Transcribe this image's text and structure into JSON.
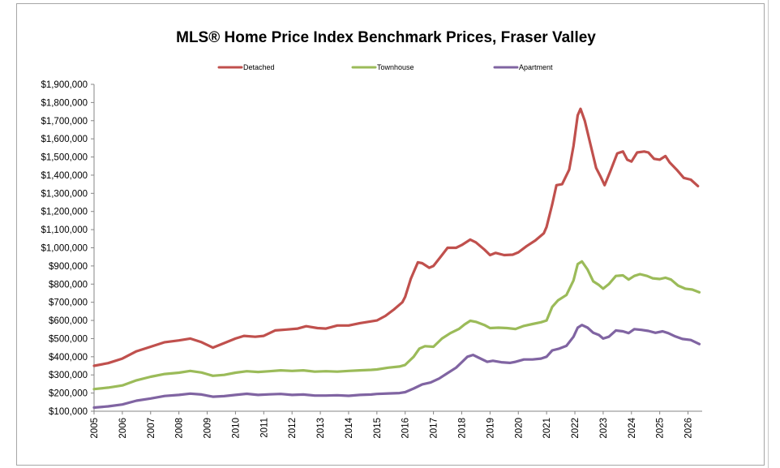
{
  "chart_data": {
    "type": "line",
    "title": "MLS® Home Price Index Benchmark Prices, Fraser Valley",
    "xlabel": "",
    "ylabel": "",
    "ylim": [
      100000,
      1900000
    ],
    "xlim": [
      2005,
      2026.5
    ],
    "y_ticks": [
      100000,
      200000,
      300000,
      400000,
      500000,
      600000,
      700000,
      800000,
      900000,
      1000000,
      1100000,
      1200000,
      1300000,
      1400000,
      1500000,
      1600000,
      1700000,
      1800000,
      1900000
    ],
    "y_tick_labels": [
      "$100,000",
      "$200,000",
      "$300,000",
      "$400,000",
      "$500,000",
      "$600,000",
      "$700,000",
      "$800,000",
      "$900,000",
      "$1,000,000",
      "$1,100,000",
      "$1,200,000",
      "$1,300,000",
      "$1,400,000",
      "$1,500,000",
      "$1,600,000",
      "$1,700,000",
      "$1,800,000",
      "$1,900,000"
    ],
    "x_ticks": [
      2005,
      2006,
      2007,
      2008,
      2009,
      2010,
      2011,
      2012,
      2013,
      2014,
      2015,
      2016,
      2017,
      2018,
      2019,
      2020,
      2021,
      2022,
      2023,
      2024,
      2025,
      2026
    ],
    "x_tick_labels": [
      "2005",
      "2006",
      "2007",
      "2008",
      "2009",
      "2010",
      "2011",
      "2012",
      "2013",
      "2014",
      "2015",
      "2016",
      "2017",
      "2018",
      "2019",
      "2020",
      "2021",
      "2022",
      "2023",
      "2024",
      "2025",
      "2026"
    ],
    "grid": false,
    "legend_position": "top",
    "series": [
      {
        "name": "Detached",
        "color": "#c0504d",
        "points": [
          [
            2005.0,
            350000
          ],
          [
            2005.5,
            365000
          ],
          [
            2006.0,
            390000
          ],
          [
            2006.5,
            430000
          ],
          [
            2007.0,
            455000
          ],
          [
            2007.5,
            480000
          ],
          [
            2008.0,
            490000
          ],
          [
            2008.4,
            500000
          ],
          [
            2008.8,
            480000
          ],
          [
            2009.2,
            450000
          ],
          [
            2009.6,
            475000
          ],
          [
            2010.0,
            500000
          ],
          [
            2010.3,
            515000
          ],
          [
            2010.7,
            510000
          ],
          [
            2011.0,
            515000
          ],
          [
            2011.4,
            545000
          ],
          [
            2011.8,
            550000
          ],
          [
            2012.2,
            555000
          ],
          [
            2012.5,
            568000
          ],
          [
            2012.9,
            558000
          ],
          [
            2013.2,
            555000
          ],
          [
            2013.6,
            572000
          ],
          [
            2014.0,
            572000
          ],
          [
            2014.4,
            585000
          ],
          [
            2014.8,
            595000
          ],
          [
            2015.0,
            600000
          ],
          [
            2015.3,
            625000
          ],
          [
            2015.6,
            660000
          ],
          [
            2015.9,
            700000
          ],
          [
            2016.0,
            730000
          ],
          [
            2016.2,
            830000
          ],
          [
            2016.45,
            920000
          ],
          [
            2016.6,
            915000
          ],
          [
            2016.85,
            890000
          ],
          [
            2017.0,
            900000
          ],
          [
            2017.3,
            960000
          ],
          [
            2017.5,
            1000000
          ],
          [
            2017.8,
            1000000
          ],
          [
            2018.0,
            1015000
          ],
          [
            2018.3,
            1045000
          ],
          [
            2018.5,
            1030000
          ],
          [
            2018.8,
            990000
          ],
          [
            2019.0,
            960000
          ],
          [
            2019.2,
            972000
          ],
          [
            2019.5,
            960000
          ],
          [
            2019.8,
            962000
          ],
          [
            2020.0,
            975000
          ],
          [
            2020.3,
            1010000
          ],
          [
            2020.6,
            1040000
          ],
          [
            2020.9,
            1080000
          ],
          [
            2021.0,
            1115000
          ],
          [
            2021.2,
            1240000
          ],
          [
            2021.35,
            1345000
          ],
          [
            2021.55,
            1350000
          ],
          [
            2021.8,
            1430000
          ],
          [
            2021.95,
            1560000
          ],
          [
            2022.1,
            1730000
          ],
          [
            2022.2,
            1765000
          ],
          [
            2022.35,
            1700000
          ],
          [
            2022.55,
            1570000
          ],
          [
            2022.75,
            1440000
          ],
          [
            2022.9,
            1395000
          ],
          [
            2023.05,
            1345000
          ],
          [
            2023.25,
            1420000
          ],
          [
            2023.5,
            1520000
          ],
          [
            2023.7,
            1530000
          ],
          [
            2023.85,
            1485000
          ],
          [
            2024.0,
            1475000
          ],
          [
            2024.2,
            1525000
          ],
          [
            2024.45,
            1530000
          ],
          [
            2024.6,
            1525000
          ],
          [
            2024.8,
            1490000
          ],
          [
            2025.0,
            1485000
          ],
          [
            2025.2,
            1505000
          ],
          [
            2025.35,
            1470000
          ],
          [
            2025.6,
            1430000
          ],
          [
            2025.85,
            1385000
          ],
          [
            2026.1,
            1375000
          ],
          [
            2026.35,
            1340000
          ]
        ]
      },
      {
        "name": "Townhouse",
        "color": "#9bbb59",
        "points": [
          [
            2005.0,
            222000
          ],
          [
            2005.5,
            230000
          ],
          [
            2006.0,
            242000
          ],
          [
            2006.5,
            270000
          ],
          [
            2007.0,
            290000
          ],
          [
            2007.5,
            305000
          ],
          [
            2008.0,
            312000
          ],
          [
            2008.4,
            322000
          ],
          [
            2008.8,
            313000
          ],
          [
            2009.2,
            295000
          ],
          [
            2009.6,
            300000
          ],
          [
            2010.0,
            312000
          ],
          [
            2010.4,
            320000
          ],
          [
            2010.8,
            316000
          ],
          [
            2011.2,
            320000
          ],
          [
            2011.6,
            325000
          ],
          [
            2012.0,
            322000
          ],
          [
            2012.4,
            325000
          ],
          [
            2012.8,
            318000
          ],
          [
            2013.2,
            320000
          ],
          [
            2013.6,
            318000
          ],
          [
            2014.0,
            322000
          ],
          [
            2014.4,
            325000
          ],
          [
            2014.8,
            328000
          ],
          [
            2015.0,
            330000
          ],
          [
            2015.4,
            340000
          ],
          [
            2015.8,
            346000
          ],
          [
            2016.0,
            355000
          ],
          [
            2016.3,
            400000
          ],
          [
            2016.5,
            445000
          ],
          [
            2016.7,
            458000
          ],
          [
            2017.0,
            455000
          ],
          [
            2017.3,
            500000
          ],
          [
            2017.6,
            530000
          ],
          [
            2017.9,
            553000
          ],
          [
            2018.1,
            578000
          ],
          [
            2018.3,
            598000
          ],
          [
            2018.5,
            592000
          ],
          [
            2018.8,
            575000
          ],
          [
            2019.0,
            558000
          ],
          [
            2019.3,
            560000
          ],
          [
            2019.6,
            558000
          ],
          [
            2019.9,
            553000
          ],
          [
            2020.2,
            570000
          ],
          [
            2020.5,
            580000
          ],
          [
            2020.8,
            590000
          ],
          [
            2021.0,
            600000
          ],
          [
            2021.2,
            675000
          ],
          [
            2021.4,
            710000
          ],
          [
            2021.7,
            740000
          ],
          [
            2021.95,
            820000
          ],
          [
            2022.1,
            910000
          ],
          [
            2022.25,
            925000
          ],
          [
            2022.45,
            880000
          ],
          [
            2022.65,
            815000
          ],
          [
            2022.85,
            795000
          ],
          [
            2023.0,
            775000
          ],
          [
            2023.2,
            800000
          ],
          [
            2023.45,
            845000
          ],
          [
            2023.7,
            848000
          ],
          [
            2023.9,
            825000
          ],
          [
            2024.1,
            845000
          ],
          [
            2024.3,
            855000
          ],
          [
            2024.55,
            845000
          ],
          [
            2024.75,
            832000
          ],
          [
            2025.0,
            828000
          ],
          [
            2025.2,
            835000
          ],
          [
            2025.4,
            825000
          ],
          [
            2025.65,
            792000
          ],
          [
            2025.9,
            775000
          ],
          [
            2026.15,
            770000
          ],
          [
            2026.4,
            755000
          ]
        ]
      },
      {
        "name": "Apartment",
        "color": "#8064a2",
        "points": [
          [
            2005.0,
            120000
          ],
          [
            2005.5,
            127000
          ],
          [
            2006.0,
            137000
          ],
          [
            2006.5,
            158000
          ],
          [
            2007.0,
            170000
          ],
          [
            2007.5,
            184000
          ],
          [
            2008.0,
            190000
          ],
          [
            2008.4,
            197000
          ],
          [
            2008.8,
            192000
          ],
          [
            2009.2,
            180000
          ],
          [
            2009.6,
            183000
          ],
          [
            2010.0,
            190000
          ],
          [
            2010.4,
            196000
          ],
          [
            2010.8,
            190000
          ],
          [
            2011.2,
            193000
          ],
          [
            2011.6,
            195000
          ],
          [
            2012.0,
            190000
          ],
          [
            2012.4,
            192000
          ],
          [
            2012.8,
            186000
          ],
          [
            2013.2,
            186000
          ],
          [
            2013.6,
            188000
          ],
          [
            2014.0,
            185000
          ],
          [
            2014.4,
            190000
          ],
          [
            2014.8,
            192000
          ],
          [
            2015.0,
            195000
          ],
          [
            2015.4,
            198000
          ],
          [
            2015.8,
            200000
          ],
          [
            2016.0,
            205000
          ],
          [
            2016.3,
            225000
          ],
          [
            2016.6,
            248000
          ],
          [
            2016.9,
            258000
          ],
          [
            2017.2,
            280000
          ],
          [
            2017.5,
            310000
          ],
          [
            2017.8,
            340000
          ],
          [
            2018.0,
            370000
          ],
          [
            2018.2,
            400000
          ],
          [
            2018.4,
            410000
          ],
          [
            2018.6,
            395000
          ],
          [
            2018.9,
            372000
          ],
          [
            2019.1,
            378000
          ],
          [
            2019.4,
            370000
          ],
          [
            2019.7,
            366000
          ],
          [
            2019.9,
            372000
          ],
          [
            2020.2,
            385000
          ],
          [
            2020.5,
            385000
          ],
          [
            2020.8,
            390000
          ],
          [
            2021.0,
            400000
          ],
          [
            2021.2,
            435000
          ],
          [
            2021.45,
            445000
          ],
          [
            2021.7,
            460000
          ],
          [
            2021.95,
            510000
          ],
          [
            2022.1,
            560000
          ],
          [
            2022.25,
            575000
          ],
          [
            2022.45,
            560000
          ],
          [
            2022.65,
            532000
          ],
          [
            2022.85,
            520000
          ],
          [
            2023.0,
            500000
          ],
          [
            2023.2,
            510000
          ],
          [
            2023.45,
            545000
          ],
          [
            2023.7,
            540000
          ],
          [
            2023.9,
            530000
          ],
          [
            2024.1,
            552000
          ],
          [
            2024.35,
            548000
          ],
          [
            2024.6,
            542000
          ],
          [
            2024.85,
            532000
          ],
          [
            2025.1,
            540000
          ],
          [
            2025.3,
            530000
          ],
          [
            2025.55,
            512000
          ],
          [
            2025.8,
            498000
          ],
          [
            2026.1,
            492000
          ],
          [
            2026.4,
            470000
          ]
        ]
      }
    ]
  }
}
